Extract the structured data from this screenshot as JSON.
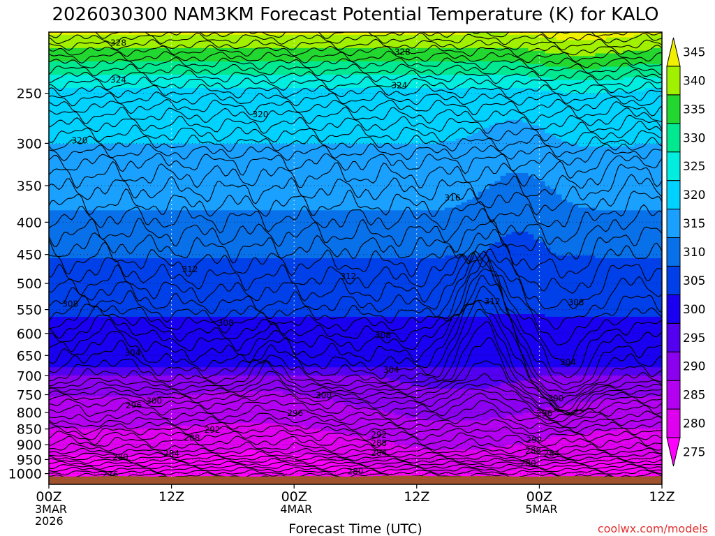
{
  "chart_data": {
    "type": "contour",
    "title": "2026030300 NAM3KM Forecast Potential Temperature (K) for KALO",
    "xlabel": "Forecast Time (UTC)",
    "ylabel": "",
    "credit": "coolwx.com/models",
    "x_ticks": [
      {
        "hours": 0,
        "lines": [
          "00Z",
          "3MAR",
          "2026"
        ]
      },
      {
        "hours": 12,
        "lines": [
          "12Z"
        ]
      },
      {
        "hours": 24,
        "lines": [
          "00Z",
          "4MAR"
        ]
      },
      {
        "hours": 36,
        "lines": [
          "12Z"
        ]
      },
      {
        "hours": 48,
        "lines": [
          "00Z",
          "5MAR"
        ]
      },
      {
        "hours": 60,
        "lines": [
          "12Z"
        ]
      }
    ],
    "xlim_hours": [
      0,
      60
    ],
    "y_axis": {
      "type": "pressure_log",
      "ylim_hPa": [
        1040,
        200
      ],
      "ticks": [
        250,
        300,
        350,
        400,
        450,
        500,
        550,
        600,
        650,
        700,
        750,
        800,
        850,
        900,
        950,
        1000
      ]
    },
    "colorbar": {
      "units": "K",
      "levels": [
        275,
        280,
        285,
        290,
        295,
        300,
        305,
        310,
        315,
        320,
        325,
        330,
        335,
        340,
        345
      ],
      "colors": [
        "#ff00ff",
        "#e000f0",
        "#b400f0",
        "#8c00f0",
        "#5400f0",
        "#1a00f0",
        "#0040e8",
        "#0870e8",
        "#1aa0ff",
        "#00d2ff",
        "#00eee0",
        "#00e890",
        "#22d830",
        "#a0f000",
        "#f0f000"
      ]
    },
    "surface_fill_color": "#a0522d",
    "contour_interval_K": 2,
    "contour_labels": [
      {
        "value": "328",
        "hour": 6.8,
        "hPa": 208
      },
      {
        "value": "328",
        "hour": 34.6,
        "hPa": 215
      },
      {
        "value": "324",
        "hour": 6.8,
        "hPa": 238
      },
      {
        "value": "324",
        "hour": 34.3,
        "hPa": 243
      },
      {
        "value": "320",
        "hour": 20.7,
        "hPa": 270
      },
      {
        "value": "320",
        "hour": 3.0,
        "hPa": 297
      },
      {
        "value": "316",
        "hour": 39.5,
        "hPa": 366
      },
      {
        "value": "312",
        "hour": 13.8,
        "hPa": 475
      },
      {
        "value": "312",
        "hour": 29.3,
        "hPa": 487
      },
      {
        "value": "312",
        "hour": 43.4,
        "hPa": 534
      },
      {
        "value": "308",
        "hour": 2.1,
        "hPa": 539
      },
      {
        "value": "308",
        "hour": 17.3,
        "hPa": 578
      },
      {
        "value": "308",
        "hour": 32.7,
        "hPa": 604
      },
      {
        "value": "308",
        "hour": 51.6,
        "hPa": 536
      },
      {
        "value": "304",
        "hour": 8.2,
        "hPa": 644
      },
      {
        "value": "304",
        "hour": 33.5,
        "hPa": 685
      },
      {
        "value": "304",
        "hour": 50.8,
        "hPa": 666
      },
      {
        "value": "300",
        "hour": 10.3,
        "hPa": 767
      },
      {
        "value": "300",
        "hour": 26.9,
        "hPa": 752
      },
      {
        "value": "300",
        "hour": 49.6,
        "hPa": 761
      },
      {
        "value": "296",
        "hour": 8.3,
        "hPa": 780
      },
      {
        "value": "296",
        "hour": 24.1,
        "hPa": 802
      },
      {
        "value": "296",
        "hour": 48.5,
        "hPa": 803
      },
      {
        "value": "292",
        "hour": 16.0,
        "hPa": 853
      },
      {
        "value": "292",
        "hour": 32.3,
        "hPa": 868
      },
      {
        "value": "292",
        "hour": 47.5,
        "hPa": 885
      },
      {
        "value": "288",
        "hour": 14.0,
        "hPa": 878
      },
      {
        "value": "288",
        "hour": 32.3,
        "hPa": 895
      },
      {
        "value": "288",
        "hour": 47.4,
        "hPa": 920
      },
      {
        "value": "284",
        "hour": 12.0,
        "hPa": 930
      },
      {
        "value": "284",
        "hour": 32.3,
        "hPa": 927
      },
      {
        "value": "284",
        "hour": 49.2,
        "hPa": 930
      },
      {
        "value": "280",
        "hour": 7.0,
        "hPa": 942
      },
      {
        "value": "280",
        "hour": 30.0,
        "hPa": 992
      },
      {
        "value": "280",
        "hour": 46.9,
        "hPa": 963
      },
      {
        "value": "276",
        "hour": 6.0,
        "hPa": 1003
      }
    ]
  }
}
